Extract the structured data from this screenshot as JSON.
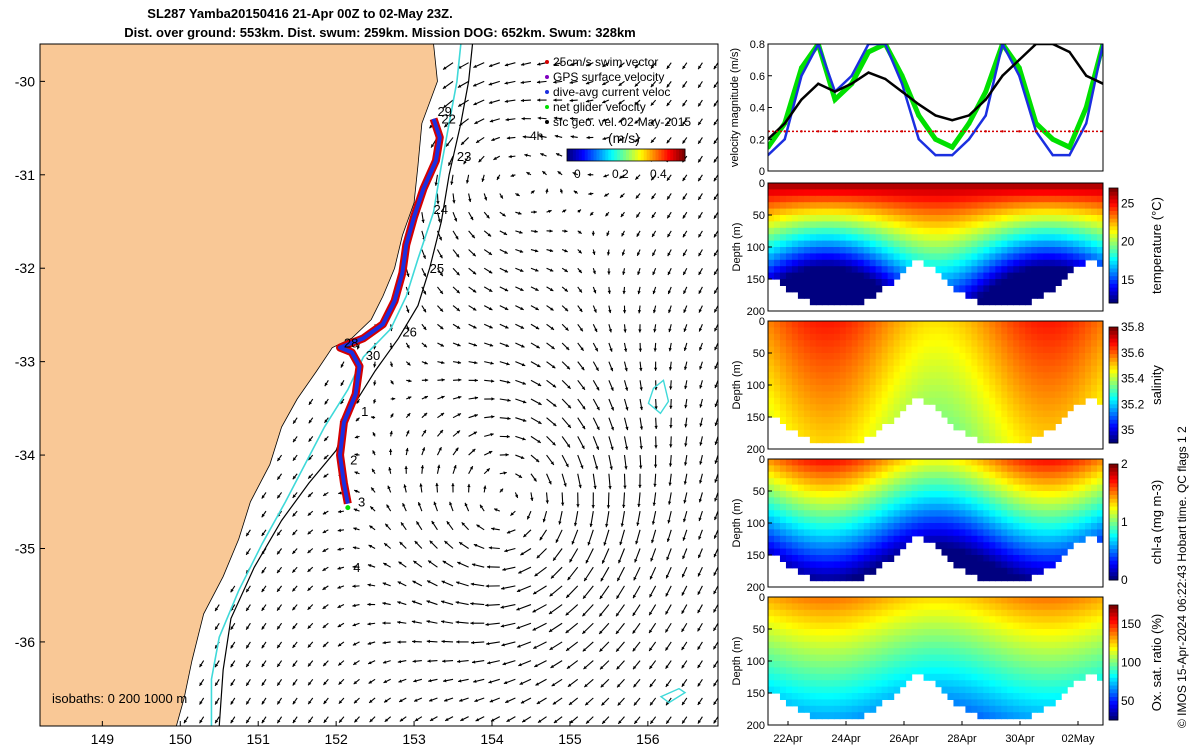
{
  "title": {
    "line1": "SL287 Yamba20150416 21-Apr 00Z to 02-May 23Z.",
    "line2": "Dist. over ground: 553km. Dist. swum: 259km. Mission DOG: 652km. Swum: 328km"
  },
  "footer_note": "© IMOS 15-Apr-2024 06:22:43 Hobart time. QC flags 1  2",
  "colors": {
    "land": "#f9c896",
    "track_red": "#d40000",
    "track_blue": "#1b2fe0",
    "cyan_isobath": "#3fd9d9",
    "green": "#00e000"
  },
  "chart_data": [
    {
      "id": "map",
      "type": "scatter",
      "xlim": [
        148.2,
        156.9
      ],
      "ylim": [
        -36.9,
        -29.6
      ],
      "xticks": [
        "149",
        "150",
        "151",
        "152",
        "153",
        "154",
        "155",
        "156"
      ],
      "yticks": [
        "-30",
        "-31",
        "-32",
        "-33",
        "-34",
        "-35",
        "-36"
      ],
      "legend": [
        {
          "label": "25cm/s swim vector",
          "color": "#d40000"
        },
        {
          "label": "GPS surface velocity",
          "color": "#8000c0"
        },
        {
          "label": "dive-avg current veloc",
          "color": "#1b2fe0"
        },
        {
          "label": "net glider velocity",
          "color": "#00e000"
        },
        {
          "label": "sfc geo. vel. 02-May-2015",
          "color": "#000000"
        }
      ],
      "colorbar": {
        "label": "(m/s)",
        "ticks": [
          "0",
          "0.2",
          "0.4"
        ],
        "note": "4h"
      },
      "isobaths_label": "isobaths: 0   200  1000 m",
      "day_labels": [
        {
          "text": "22",
          "lon": 153.35,
          "lat": -30.45
        },
        {
          "text": "23",
          "lon": 153.55,
          "lat": -30.85
        },
        {
          "text": "24",
          "lon": 153.25,
          "lat": -31.42
        },
        {
          "text": "25",
          "lon": 153.2,
          "lat": -32.05
        },
        {
          "text": "26",
          "lon": 152.85,
          "lat": -32.73
        },
        {
          "text": "28",
          "lon": 152.1,
          "lat": -32.85
        },
        {
          "text": "30",
          "lon": 152.38,
          "lat": -32.98
        },
        {
          "text": "1",
          "lon": 152.32,
          "lat": -33.58
        },
        {
          "text": "2",
          "lon": 152.18,
          "lat": -34.1
        },
        {
          "text": "3",
          "lon": 152.28,
          "lat": -34.55
        },
        {
          "text": "4",
          "lon": 152.22,
          "lat": -35.25
        },
        {
          "text": "29",
          "lon": 153.3,
          "lat": -30.37
        }
      ],
      "track": [
        [
          153.25,
          -30.4
        ],
        [
          153.33,
          -30.6
        ],
        [
          153.28,
          -30.85
        ],
        [
          153.12,
          -31.15
        ],
        [
          153.0,
          -31.45
        ],
        [
          152.9,
          -31.75
        ],
        [
          152.85,
          -32.05
        ],
        [
          152.75,
          -32.35
        ],
        [
          152.6,
          -32.6
        ],
        [
          152.35,
          -32.75
        ],
        [
          152.05,
          -32.85
        ],
        [
          152.2,
          -32.9
        ],
        [
          152.3,
          -33.05
        ],
        [
          152.25,
          -33.35
        ],
        [
          152.1,
          -33.65
        ],
        [
          152.05,
          -34.0
        ],
        [
          152.1,
          -34.3
        ],
        [
          152.15,
          -34.52
        ]
      ],
      "coast": [
        [
          153.25,
          -29.6
        ],
        [
          153.3,
          -30.0
        ],
        [
          153.1,
          -30.45
        ],
        [
          153.05,
          -30.9
        ],
        [
          153.0,
          -31.3
        ],
        [
          152.85,
          -31.65
        ],
        [
          152.75,
          -32.0
        ],
        [
          152.6,
          -32.3
        ],
        [
          152.45,
          -32.55
        ],
        [
          152.2,
          -32.75
        ],
        [
          151.95,
          -32.85
        ],
        [
          151.75,
          -33.1
        ],
        [
          151.5,
          -33.4
        ],
        [
          151.3,
          -33.7
        ],
        [
          151.15,
          -34.1
        ],
        [
          150.9,
          -34.5
        ],
        [
          150.75,
          -34.9
        ],
        [
          150.55,
          -35.3
        ],
        [
          150.3,
          -35.7
        ],
        [
          150.15,
          -36.2
        ],
        [
          150.05,
          -36.6
        ],
        [
          149.95,
          -36.9
        ]
      ],
      "iso200": [
        [
          153.6,
          -29.6
        ],
        [
          153.55,
          -30.0
        ],
        [
          153.45,
          -30.45
        ],
        [
          153.35,
          -30.9
        ],
        [
          153.25,
          -31.4
        ],
        [
          153.05,
          -31.9
        ],
        [
          152.9,
          -32.3
        ],
        [
          152.7,
          -32.65
        ],
        [
          152.35,
          -32.95
        ],
        [
          152.15,
          -33.3
        ],
        [
          151.85,
          -33.7
        ],
        [
          151.6,
          -34.1
        ],
        [
          151.35,
          -34.5
        ],
        [
          151.05,
          -34.95
        ],
        [
          150.75,
          -35.45
        ],
        [
          150.5,
          -35.95
        ],
        [
          150.4,
          -36.4
        ],
        [
          150.4,
          -36.9
        ]
      ],
      "iso1000": [
        [
          153.75,
          -29.6
        ],
        [
          153.7,
          -30.0
        ],
        [
          153.6,
          -30.45
        ],
        [
          153.45,
          -31.0
        ],
        [
          153.35,
          -31.5
        ],
        [
          153.2,
          -32.0
        ],
        [
          153.05,
          -32.4
        ],
        [
          152.8,
          -32.75
        ],
        [
          152.5,
          -33.1
        ],
        [
          152.2,
          -33.5
        ],
        [
          152.0,
          -33.95
        ],
        [
          151.65,
          -34.3
        ],
        [
          151.3,
          -34.7
        ],
        [
          150.95,
          -35.2
        ],
        [
          150.65,
          -35.75
        ],
        [
          150.55,
          -36.3
        ],
        [
          150.5,
          -36.9
        ]
      ]
    },
    {
      "id": "velocity",
      "type": "line",
      "ylabel": "velocity magnitude (m/s)",
      "ylim": [
        0,
        0.8
      ],
      "yticks": [
        "0",
        "0.2",
        "0.4",
        "0.6",
        "0.8"
      ],
      "series": [
        {
          "color": "#00e000",
          "values": [
            0.15,
            0.3,
            0.65,
            0.8,
            0.45,
            0.55,
            0.75,
            0.8,
            0.6,
            0.35,
            0.2,
            0.15,
            0.3,
            0.5,
            0.8,
            0.65,
            0.3,
            0.2,
            0.15,
            0.4,
            0.8
          ]
        },
        {
          "color": "#1b2fe0",
          "values": [
            0.1,
            0.2,
            0.6,
            0.8,
            0.5,
            0.6,
            0.8,
            0.8,
            0.55,
            0.2,
            0.1,
            0.1,
            0.2,
            0.35,
            0.8,
            0.6,
            0.25,
            0.1,
            0.1,
            0.3,
            0.8
          ]
        },
        {
          "color": "#000000",
          "values": [
            0.2,
            0.3,
            0.45,
            0.55,
            0.5,
            0.55,
            0.62,
            0.58,
            0.5,
            0.42,
            0.35,
            0.32,
            0.35,
            0.45,
            0.6,
            0.7,
            0.8,
            0.8,
            0.75,
            0.6,
            0.55
          ]
        },
        {
          "color": "#d40000",
          "values": [
            0.25,
            0.25,
            0.25,
            0.25,
            0.25,
            0.25,
            0.25,
            0.25,
            0.25,
            0.25,
            0.25,
            0.25,
            0.25,
            0.25,
            0.25,
            0.25,
            0.25,
            0.25,
            0.25,
            0.25,
            0.25
          ]
        }
      ]
    },
    {
      "id": "temperature",
      "type": "heatmap",
      "ylabel": "Depth (m)",
      "cbar_label": "temperature (°C)",
      "ylim": [
        200,
        0
      ],
      "yticks": [
        "0",
        "50",
        "100",
        "150",
        "200"
      ],
      "cbar_ticks": [
        "15",
        "20",
        "25"
      ],
      "cbar_range": [
        12,
        27
      ]
    },
    {
      "id": "salinity",
      "type": "heatmap",
      "ylabel": "Depth (m)",
      "cbar_label": "salinity",
      "ylim": [
        200,
        0
      ],
      "yticks": [
        "0",
        "50",
        "100",
        "150",
        "200"
      ],
      "cbar_ticks": [
        "35",
        "35.2",
        "35.4",
        "35.6",
        "35.8"
      ],
      "cbar_range": [
        34.9,
        35.8
      ]
    },
    {
      "id": "chla",
      "type": "heatmap",
      "ylabel": "Depth (m)",
      "cbar_label": "chl-a (mg m-3)",
      "ylim": [
        200,
        0
      ],
      "yticks": [
        "0",
        "50",
        "100",
        "150",
        "200"
      ],
      "cbar_ticks": [
        "0",
        "1",
        "2"
      ],
      "cbar_range": [
        0,
        2
      ]
    },
    {
      "id": "oxsat",
      "type": "heatmap",
      "ylabel": "Depth (m)",
      "cbar_label": "Ox. sat. ratio (%)",
      "ylim": [
        200,
        0
      ],
      "yticks": [
        "0",
        "50",
        "100",
        "150",
        "200"
      ],
      "cbar_ticks": [
        "50",
        "100",
        "150"
      ],
      "cbar_range": [
        25,
        175
      ],
      "xticks": [
        "22Apr",
        "24Apr",
        "26Apr",
        "28Apr",
        "30Apr",
        "02May"
      ]
    }
  ]
}
